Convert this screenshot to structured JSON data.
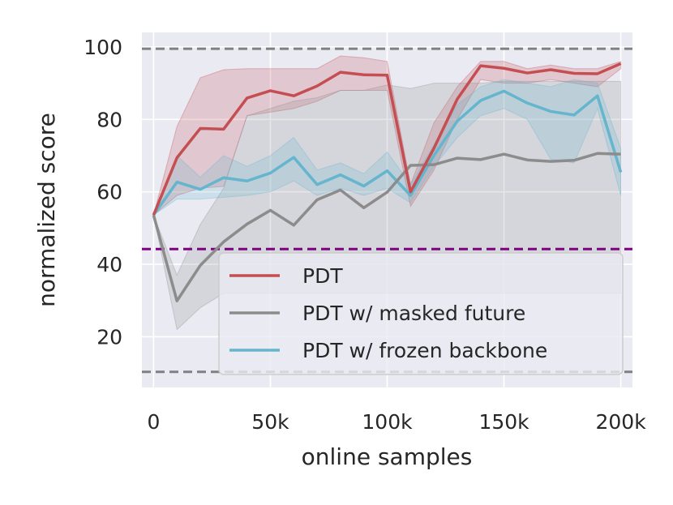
{
  "chart_data": {
    "type": "line",
    "title": "",
    "xlabel": "online samples",
    "ylabel": "normalized score",
    "xlim": [
      -5000,
      205000
    ],
    "ylim": [
      6,
      104
    ],
    "grid": true,
    "legend_position": "lower-right",
    "xticks": [
      {
        "value": 0,
        "label": "0"
      },
      {
        "value": 50000,
        "label": "50k"
      },
      {
        "value": 100000,
        "label": "100k"
      },
      {
        "value": 150000,
        "label": "150k"
      },
      {
        "value": 200000,
        "label": "200k"
      }
    ],
    "yticks": [
      {
        "value": 20,
        "label": "20"
      },
      {
        "value": 40,
        "label": "40"
      },
      {
        "value": 60,
        "label": "60"
      },
      {
        "value": 80,
        "label": "80"
      },
      {
        "value": 100,
        "label": "100"
      }
    ],
    "reference_lines": [
      {
        "y": 99.5,
        "color": "#808080"
      },
      {
        "y": 10.3,
        "color": "#808080"
      },
      {
        "y": 44.2,
        "color": "#800080"
      }
    ],
    "x": [
      0,
      10000,
      20000,
      30000,
      40000,
      50000,
      60000,
      70000,
      80000,
      90000,
      100000,
      110000,
      120000,
      130000,
      140000,
      150000,
      160000,
      170000,
      180000,
      190000,
      200000
    ],
    "series": [
      {
        "name": "PDT",
        "color": "#c44e52",
        "values": [
          53.6,
          69.4,
          77.5,
          77.3,
          85.9,
          87.9,
          86.5,
          89.2,
          93.0,
          92.3,
          92.2,
          60.0,
          72.0,
          85.6,
          94.8,
          94.1,
          92.8,
          93.7,
          92.7,
          92.6,
          95.4
        ],
        "lower": [
          53.6,
          59.0,
          61.0,
          61.5,
          81.0,
          82.0,
          83.0,
          85.0,
          88.0,
          88.0,
          88.0,
          56.0,
          66.0,
          80.0,
          91.0,
          90.0,
          90.0,
          91.0,
          90.0,
          89.0,
          94.0
        ],
        "upper": [
          53.6,
          78.0,
          91.5,
          93.7,
          94.0,
          94.0,
          94.0,
          94.0,
          97.5,
          97.0,
          96.0,
          62.0,
          79.0,
          89.0,
          96.0,
          96.0,
          94.0,
          95.0,
          94.0,
          94.0,
          96.0
        ]
      },
      {
        "name": "PDT w/ masked future",
        "color": "#8c8c8c",
        "values": [
          53.6,
          29.9,
          39.7,
          46.2,
          51.1,
          54.9,
          50.8,
          57.8,
          60.5,
          55.6,
          59.9,
          67.3,
          67.5,
          69.3,
          68.9,
          70.4,
          68.8,
          68.4,
          68.7,
          70.6,
          70.4
        ],
        "lower": [
          53.6,
          22.0,
          28.0,
          32.0,
          32.0,
          32.0,
          32.0,
          32.0,
          32.0,
          32.0,
          32.0,
          32.0,
          32.0,
          32.0,
          32.0,
          32.0,
          32.0,
          32.0,
          32.0,
          32.0,
          32.0
        ],
        "upper": [
          53.6,
          37.0,
          51.0,
          61.0,
          81.0,
          83.0,
          85.0,
          86.0,
          88.0,
          88.0,
          89.5,
          88.5,
          90.0,
          90.0,
          90.0,
          90.5,
          90.5,
          90.5,
          90.5,
          90.5,
          90.5
        ]
      },
      {
        "name": "PDT w/ frozen backbone",
        "color": "#64b5cd",
        "values": [
          53.6,
          62.7,
          60.7,
          63.9,
          63.0,
          65.2,
          69.5,
          62.0,
          64.7,
          61.6,
          65.8,
          59.0,
          70.0,
          79.5,
          85.2,
          87.8,
          84.5,
          82.2,
          81.2,
          86.5,
          65.4
        ],
        "lower": [
          53.6,
          58.0,
          58.0,
          58.5,
          59.0,
          60.0,
          63.0,
          59.0,
          61.0,
          59.0,
          61.0,
          57.0,
          67.0,
          75.0,
          81.0,
          83.0,
          80.0,
          69.0,
          68.0,
          83.0,
          59.0
        ],
        "upper": [
          53.6,
          70.0,
          64.0,
          70.0,
          67.0,
          70.0,
          75.0,
          66.0,
          68.0,
          65.0,
          71.0,
          62.0,
          73.0,
          84.0,
          89.0,
          91.0,
          90.0,
          89.0,
          91.0,
          90.0,
          72.0
        ]
      }
    ]
  }
}
